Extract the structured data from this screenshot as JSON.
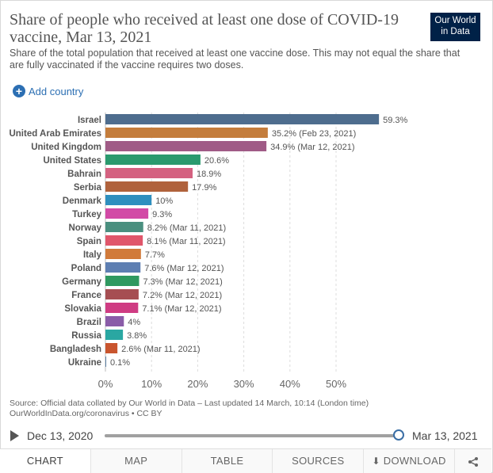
{
  "header": {
    "title": "Share of people who received at least one dose of COVID-19 vaccine, Mar 13, 2021",
    "subtitle": "Share of the total population that received at least one vaccine dose. This may not equal the share that are fully vaccinated if the vaccine requires two doses.",
    "logo_line1": "Our World",
    "logo_line2": "in Data"
  },
  "controls": {
    "add_country_label": "Add country",
    "add_icon": "+"
  },
  "chart_data": {
    "type": "bar",
    "orientation": "horizontal",
    "xlim": [
      0,
      60
    ],
    "x_ticks": [
      0,
      10,
      20,
      30,
      40,
      50
    ],
    "x_tick_labels": [
      "0%",
      "10%",
      "20%",
      "30%",
      "40%",
      "50%"
    ],
    "grid": true,
    "bars": [
      {
        "country": "Israel",
        "value": 59.3,
        "label": "59.3%",
        "color": "#4e6d8e"
      },
      {
        "country": "United Arab Emirates",
        "value": 35.2,
        "label": "35.2% (Feb 23, 2021)",
        "color": "#c47d3c"
      },
      {
        "country": "United Kingdom",
        "value": 34.9,
        "label": "34.9% (Mar 12, 2021)",
        "color": "#a05b86"
      },
      {
        "country": "United States",
        "value": 20.6,
        "label": "20.6%",
        "color": "#2a9a6e"
      },
      {
        "country": "Bahrain",
        "value": 18.9,
        "label": "18.9%",
        "color": "#d46180"
      },
      {
        "country": "Serbia",
        "value": 17.9,
        "label": "17.9%",
        "color": "#b0623c"
      },
      {
        "country": "Denmark",
        "value": 10,
        "label": "10%",
        "color": "#2e8fbf"
      },
      {
        "country": "Turkey",
        "value": 9.3,
        "label": "9.3%",
        "color": "#d24aa6"
      },
      {
        "country": "Norway",
        "value": 8.2,
        "label": "8.2% (Mar 11, 2021)",
        "color": "#4a8f7f"
      },
      {
        "country": "Spain",
        "value": 8.1,
        "label": "8.1% (Mar 11, 2021)",
        "color": "#e0566a"
      },
      {
        "country": "Italy",
        "value": 7.7,
        "label": "7.7%",
        "color": "#d17a3a"
      },
      {
        "country": "Poland",
        "value": 7.6,
        "label": "7.6% (Mar 12, 2021)",
        "color": "#5e7fb2"
      },
      {
        "country": "Germany",
        "value": 7.3,
        "label": "7.3% (Mar 12, 2021)",
        "color": "#2f9960"
      },
      {
        "country": "France",
        "value": 7.2,
        "label": "7.2% (Mar 12, 2021)",
        "color": "#a64e52"
      },
      {
        "country": "Slovakia",
        "value": 7.1,
        "label": "7.1% (Mar 12, 2021)",
        "color": "#cf3c83"
      },
      {
        "country": "Brazil",
        "value": 4,
        "label": "4%",
        "color": "#8a5ca8"
      },
      {
        "country": "Russia",
        "value": 3.8,
        "label": "3.8%",
        "color": "#2aa7a2"
      },
      {
        "country": "Bangladesh",
        "value": 2.6,
        "label": "2.6% (Mar 11, 2021)",
        "color": "#c9552e"
      },
      {
        "country": "Ukraine",
        "value": 0.1,
        "label": "0.1%",
        "color": "#5b7fa3"
      }
    ]
  },
  "footer": {
    "source_line1": "Source: Official data collated by Our World in Data – Last updated 14 March, 10:14 (London time)",
    "source_line2": "OurWorldInData.org/coronavirus • CC BY"
  },
  "timeline": {
    "start_label": "Dec 13, 2020",
    "end_label": "Mar 13, 2021",
    "progress": 1.0
  },
  "tabs": [
    {
      "label": "CHART",
      "active": true
    },
    {
      "label": "MAP",
      "active": false
    },
    {
      "label": "TABLE",
      "active": false
    },
    {
      "label": "SOURCES",
      "active": false
    },
    {
      "label": "DOWNLOAD",
      "active": false
    }
  ],
  "share_icon": "⮞"
}
